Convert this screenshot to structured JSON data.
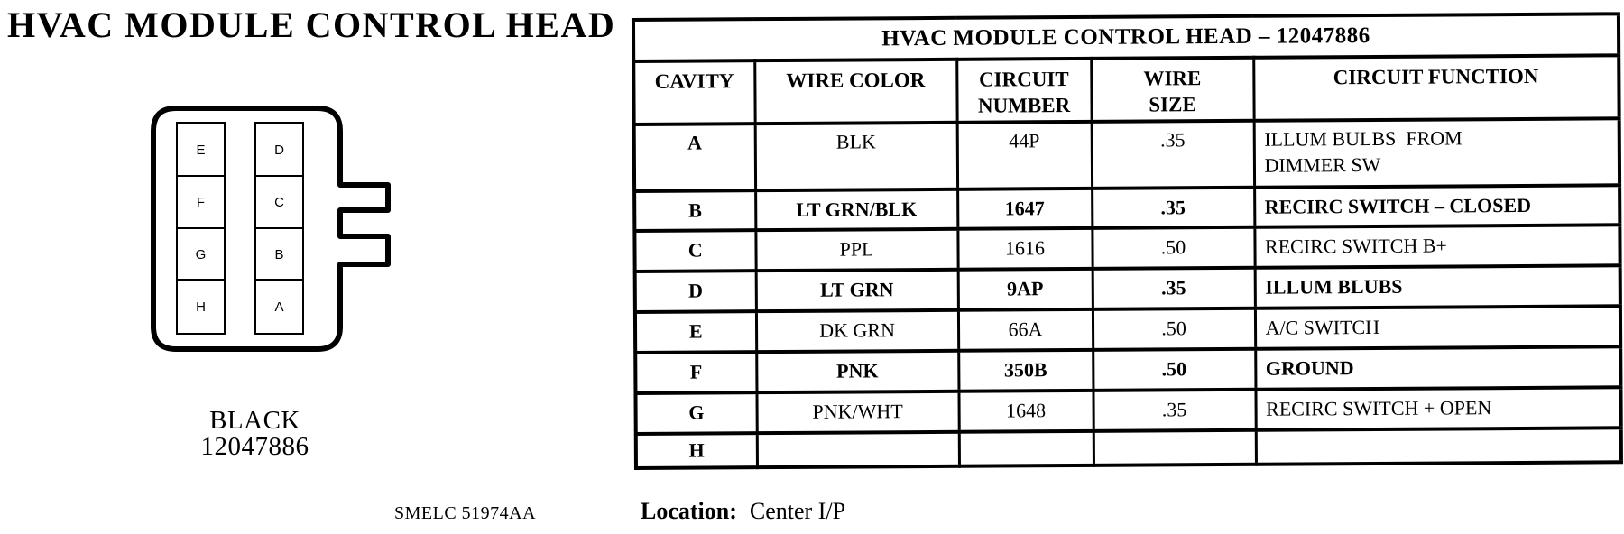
{
  "page": {
    "title": "HVAC MODULE CONTROL HEAD"
  },
  "colors": {
    "ink": "#000000",
    "paper": "#ffffff"
  },
  "connector": {
    "color_label": "BLACK",
    "part_number": "12047886",
    "left_column_pins": [
      "E",
      "F",
      "G",
      "H"
    ],
    "right_column_pins": [
      "D",
      "C",
      "B",
      "A"
    ]
  },
  "footnote": {
    "text": "SMELC 51974AA"
  },
  "location": {
    "label": "Location:",
    "value": "Center I/P"
  },
  "table": {
    "title": "HVAC MODULE CONTROL HEAD – 12047886",
    "columns": [
      "CAVITY",
      "WIRE COLOR",
      "CIRCUIT\nNUMBER",
      "WIRE\nSIZE",
      "CIRCUIT FUNCTION"
    ],
    "rows": [
      {
        "cavity": "A",
        "wire_color": "BLK",
        "circuit_number": "44P",
        "wire_size": ".35",
        "function": "ILLUM BULBS  FROM\nDIMMER SW",
        "bold": false
      },
      {
        "cavity": "B",
        "wire_color": "LT GRN/BLK",
        "circuit_number": "1647",
        "wire_size": ".35",
        "function": "RECIRC SWITCH – CLOSED",
        "bold": true
      },
      {
        "cavity": "C",
        "wire_color": "PPL",
        "circuit_number": "1616",
        "wire_size": ".50",
        "function": "RECIRC SWITCH B+",
        "bold": false
      },
      {
        "cavity": "D",
        "wire_color": "LT GRN",
        "circuit_number": "9AP",
        "wire_size": ".35",
        "function": "ILLUM BLUBS",
        "bold": true
      },
      {
        "cavity": "E",
        "wire_color": "DK GRN",
        "circuit_number": "66A",
        "wire_size": ".50",
        "function": "A/C SWITCH",
        "bold": false
      },
      {
        "cavity": "F",
        "wire_color": "PNK",
        "circuit_number": "350B",
        "wire_size": ".50",
        "function": "GROUND",
        "bold": true
      },
      {
        "cavity": "G",
        "wire_color": "PNK/WHT",
        "circuit_number": "1648",
        "wire_size": ".35",
        "function": "RECIRC SWITCH + OPEN",
        "bold": false
      },
      {
        "cavity": "H",
        "wire_color": "",
        "circuit_number": "",
        "wire_size": "",
        "function": "",
        "bold": false
      }
    ]
  }
}
